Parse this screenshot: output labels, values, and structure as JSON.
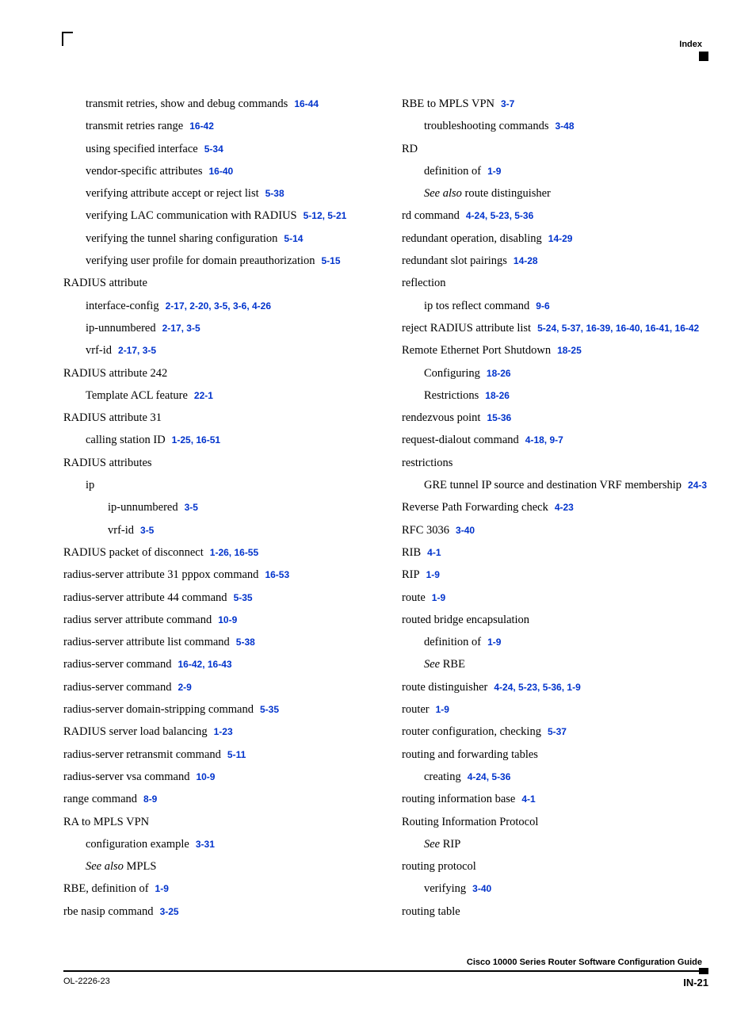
{
  "header": {
    "label": "Index"
  },
  "footer": {
    "title": "Cisco 10000 Series Router Software Configuration Guide",
    "doc_id": "OL-2226-23",
    "page_num": "IN-21"
  },
  "left": [
    {
      "text": "transmit retries, show and debug commands",
      "link": "16-44",
      "indent": 1
    },
    {
      "text": "transmit retries range",
      "link": "16-42",
      "indent": 1
    },
    {
      "text": "using specified interface",
      "link": "5-34",
      "indent": 1
    },
    {
      "text": "vendor-specific attributes",
      "link": "16-40",
      "indent": 1
    },
    {
      "text": "verifying attribute accept or reject list",
      "link": "5-38",
      "indent": 1
    },
    {
      "text": "verifying LAC communication with RADIUS",
      "link": "5-12, 5-21",
      "indent": 1
    },
    {
      "text": "verifying the tunnel sharing configuration",
      "link": "5-14",
      "indent": 1
    },
    {
      "text": "verifying user profile for domain preauthorization",
      "link": "5-15",
      "indent": 1
    },
    {
      "text": "RADIUS attribute",
      "indent": 0
    },
    {
      "text": "interface-config",
      "link": "2-17, 2-20, 3-5, 3-6, 4-26",
      "indent": 1
    },
    {
      "text": "ip-unnumbered",
      "link": "2-17, 3-5",
      "indent": 1
    },
    {
      "text": "vrf-id",
      "link": "2-17, 3-5",
      "indent": 1
    },
    {
      "text": "RADIUS attribute 242",
      "indent": 0
    },
    {
      "text": "Template ACL feature",
      "link": "22-1",
      "indent": 1
    },
    {
      "text": "RADIUS attribute 31",
      "indent": 0
    },
    {
      "text": "calling station ID",
      "link": "1-25, 16-51",
      "indent": 1
    },
    {
      "text": "RADIUS attributes",
      "indent": 0
    },
    {
      "text": "ip",
      "indent": 1
    },
    {
      "text": "ip-unnumbered",
      "link": "3-5",
      "indent": 2
    },
    {
      "text": "vrf-id",
      "link": "3-5",
      "indent": 2
    },
    {
      "text": "RADIUS packet of disconnect",
      "link": "1-26, 16-55",
      "indent": 0
    },
    {
      "text": "radius-server attribute 31 pppox command",
      "link": "16-53",
      "indent": 0
    },
    {
      "text": "radius-server attribute 44 command",
      "link": "5-35",
      "indent": 0
    },
    {
      "text": "radius server attribute command",
      "link": "10-9",
      "indent": 0
    },
    {
      "text": "radius-server attribute list command",
      "link": "5-38",
      "indent": 0
    },
    {
      "text": "radius-server command",
      "link": "16-42, 16-43",
      "indent": 0
    },
    {
      "text": "radius-server command",
      "link": "2-9",
      "indent": 0
    },
    {
      "text": "radius-server domain-stripping command",
      "link": "5-35",
      "indent": 0
    },
    {
      "text": "RADIUS server load balancing",
      "link": "1-23",
      "indent": 0
    },
    {
      "text": "radius-server retransmit command",
      "link": "5-11",
      "indent": 0
    },
    {
      "text": "radius-server vsa command",
      "link": "10-9",
      "indent": 0
    },
    {
      "text": "range command",
      "link": "8-9",
      "indent": 0
    },
    {
      "text": "RA to MPLS VPN",
      "indent": 0
    },
    {
      "text": "configuration example",
      "link": "3-31",
      "indent": 1
    },
    {
      "prefix_italic": "See also",
      "text": " MPLS",
      "indent": 1
    },
    {
      "text": "RBE, definition of",
      "link": "1-9",
      "indent": 0
    },
    {
      "text": "rbe nasip command",
      "link": "3-25",
      "indent": 0
    }
  ],
  "right": [
    {
      "text": "RBE to MPLS VPN",
      "link": "3-7",
      "indent": 0
    },
    {
      "text": "troubleshooting commands",
      "link": "3-48",
      "indent": 1
    },
    {
      "text": "RD",
      "indent": 0
    },
    {
      "text": "definition of",
      "link": "1-9",
      "indent": 1
    },
    {
      "prefix_italic": "See also",
      "text": " route distinguisher",
      "indent": 1
    },
    {
      "text": "rd command",
      "link": "4-24, 5-23, 5-36",
      "indent": 0
    },
    {
      "text": "redundant operation, disabling",
      "link": "14-29",
      "indent": 0
    },
    {
      "text": "redundant slot pairings",
      "link": "14-28",
      "indent": 0
    },
    {
      "text": "reflection",
      "indent": 0
    },
    {
      "text": "ip tos reflect command",
      "link": "9-6",
      "indent": 1
    },
    {
      "text": "reject RADIUS attribute list",
      "link": "5-24, 5-37, 16-39, 16-40, 16-41, 16-42",
      "indent": 0
    },
    {
      "text": "Remote Ethernet Port Shutdown",
      "link": "18-25",
      "indent": 0
    },
    {
      "text": "Configuring",
      "link": "18-26",
      "indent": 1
    },
    {
      "text": "Restrictions",
      "link": "18-26",
      "indent": 1
    },
    {
      "text": "rendezvous point",
      "link": "15-36",
      "indent": 0
    },
    {
      "text": "request-dialout command",
      "link": "4-18, 9-7",
      "indent": 0
    },
    {
      "text": "restrictions",
      "indent": 0
    },
    {
      "text": "GRE tunnel IP source and destination VRF membership",
      "link": "24-3",
      "indent": 1
    },
    {
      "text": "Reverse Path Forwarding check",
      "link": "4-23",
      "indent": 0
    },
    {
      "text": "RFC 3036",
      "link": "3-40",
      "indent": 0
    },
    {
      "text": "RIB",
      "link": "4-1",
      "indent": 0
    },
    {
      "text": "RIP",
      "link": "1-9",
      "indent": 0
    },
    {
      "text": "route",
      "link": "1-9",
      "indent": 0
    },
    {
      "text": "routed bridge encapsulation",
      "indent": 0
    },
    {
      "text": "definition of",
      "link": "1-9",
      "indent": 1
    },
    {
      "prefix_italic": "See",
      "text": " RBE",
      "indent": 1
    },
    {
      "text": "route distinguisher",
      "link": "4-24, 5-23, 5-36, 1-9",
      "indent": 0
    },
    {
      "text": "router",
      "link": "1-9",
      "indent": 0
    },
    {
      "text": "router configuration, checking",
      "link": "5-37",
      "indent": 0
    },
    {
      "text": "routing and forwarding tables",
      "indent": 0
    },
    {
      "text": "creating",
      "link": "4-24, 5-36",
      "indent": 1
    },
    {
      "text": "routing information base",
      "link": "4-1",
      "indent": 0
    },
    {
      "text": "Routing Information Protocol",
      "indent": 0
    },
    {
      "prefix_italic": "See",
      "text": " RIP",
      "indent": 1
    },
    {
      "text": "routing protocol",
      "indent": 0
    },
    {
      "text": "verifying",
      "link": "3-40",
      "indent": 1
    },
    {
      "text": "routing table",
      "indent": 0
    }
  ]
}
